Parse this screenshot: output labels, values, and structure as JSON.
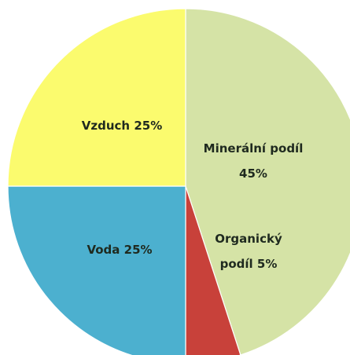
{
  "chart_data": {
    "type": "pie",
    "values": [
      45,
      5,
      25,
      25
    ],
    "value_labels": [
      "Minerální podíl\n45%",
      "Organický\npodíl 5%",
      "Voda 25%",
      "Vzduch 25%"
    ],
    "colors": [
      "#d5e3a6",
      "#c8413a",
      "#4cb0cf",
      "#fbfb6e"
    ]
  }
}
